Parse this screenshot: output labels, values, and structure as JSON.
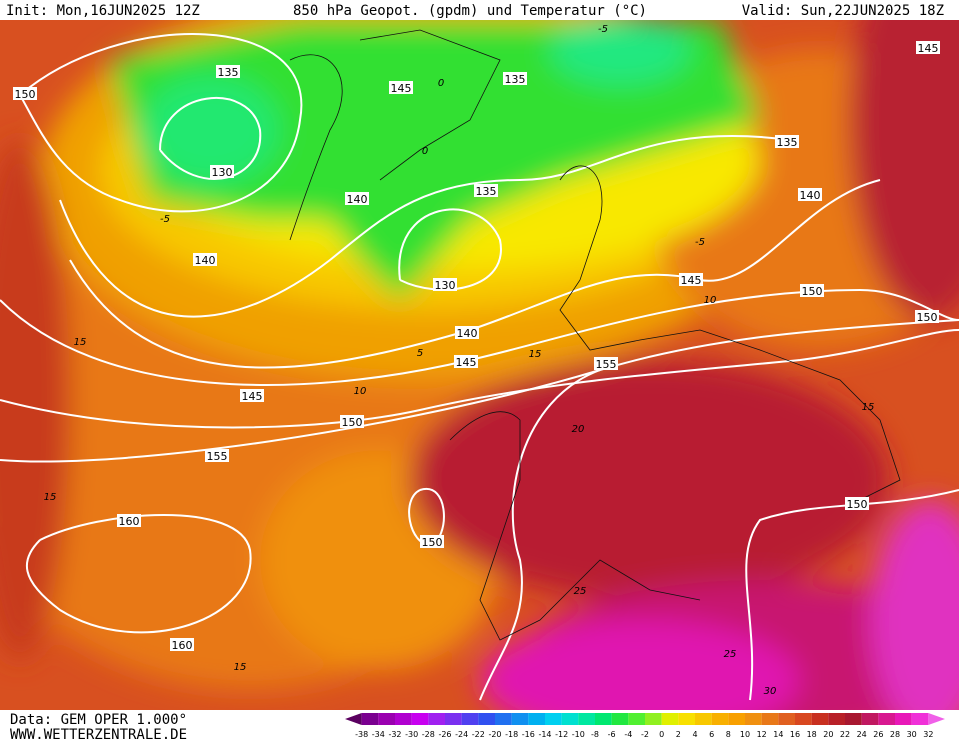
{
  "header": {
    "init": "Init: Mon,16JUN2025 12Z",
    "title": "850 hPa Geopot. (gpdm) und Temperatur (°C)",
    "valid": "Valid: Sun,22JUN2025 18Z"
  },
  "footer": {
    "source": "Data: GEM OPER 1.000°",
    "website": "WWW.WETTERZENTRALE.DE"
  },
  "geopotential_labels": [
    "130",
    "135",
    "135",
    "135",
    "135",
    "140",
    "140",
    "140",
    "140",
    "145",
    "145",
    "145",
    "145",
    "145",
    "130",
    "150",
    "150",
    "150",
    "150",
    "150",
    "150",
    "155",
    "155",
    "160",
    "160"
  ],
  "temperature_labels": [
    "-5",
    "0",
    "0",
    "-5",
    "-5",
    "5",
    "10",
    "10",
    "15",
    "15",
    "15",
    "20",
    "25",
    "25",
    "30",
    "15",
    "15"
  ],
  "colorbar": {
    "labels": [
      "-38",
      "-34",
      "-32",
      "-30",
      "-28",
      "-26",
      "-24",
      "-22",
      "-20",
      "-18",
      "-16",
      "-14",
      "-12",
      "-10",
      "-8",
      "-6",
      "-4",
      "-2",
      "0",
      "2",
      "4",
      "6",
      "8",
      "10",
      "12",
      "14",
      "16",
      "18",
      "20",
      "22",
      "24",
      "26",
      "28",
      "30",
      "32"
    ],
    "colors": [
      "#5a0060",
      "#7a0090",
      "#9a00b0",
      "#b000d0",
      "#c800f0",
      "#a020f0",
      "#7a30f0",
      "#5040f0",
      "#3050f0",
      "#2070f0",
      "#1090f0",
      "#00b0f0",
      "#00d0f0",
      "#00e0d0",
      "#00e8a0",
      "#00e870",
      "#20e840",
      "#50f030",
      "#90f020",
      "#e0f000",
      "#f8e000",
      "#f8c800",
      "#f8b000",
      "#f8a000",
      "#f09010",
      "#e87818",
      "#e06020",
      "#d84820",
      "#c83020",
      "#b82028",
      "#a81830",
      "#c01860",
      "#d81890",
      "#e818b8",
      "#f030d8",
      "#f060e8"
    ]
  }
}
